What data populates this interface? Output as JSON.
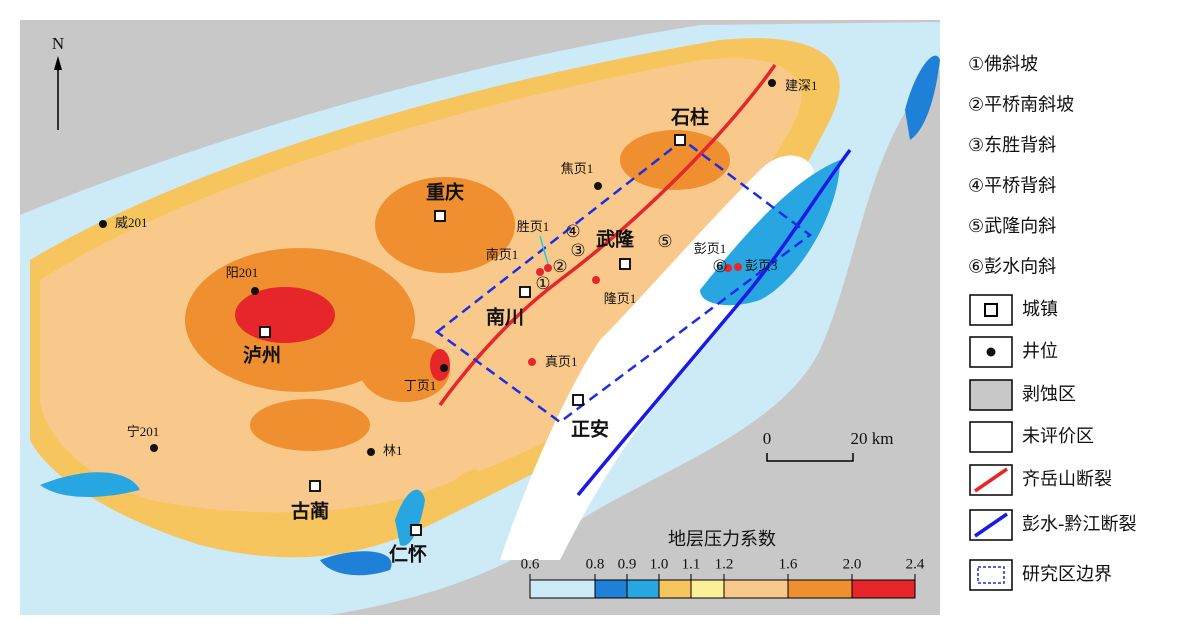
{
  "north": "N",
  "scale_bar": {
    "start": "0",
    "end": "20 km"
  },
  "colorbar": {
    "title": "地层压力系数",
    "ticks": [
      "0.6",
      "0.8",
      "0.9",
      "1.0",
      "1.1",
      "1.2",
      "1.6",
      "2.0",
      "2.4"
    ],
    "colors": [
      "#cdeaf7",
      "#1e80d6",
      "#28a6e1",
      "#f6c55e",
      "#fbef98",
      "#f8c98a",
      "#ef8f30",
      "#e6262b"
    ]
  },
  "cities": [
    "重庆",
    "泸州",
    "南川",
    "武隆",
    "石柱",
    "正安",
    "古蔺",
    "仁怀"
  ],
  "wells": [
    "建深1",
    "焦页1",
    "威201",
    "胜页1",
    "南页1",
    "阳201",
    "彭页1",
    "彭页3",
    "隆页1",
    "真页1",
    "丁页1",
    "宁201",
    "林1"
  ],
  "structures": [
    "①",
    "②",
    "③",
    "④",
    "⑤",
    "⑥"
  ],
  "legend": {
    "structures": [
      "①佛斜坡",
      "②平桥南斜坡",
      "③东胜背斜",
      "④平桥背斜",
      "⑤武隆向斜",
      "⑥彭水向斜"
    ],
    "symbols": [
      "城镇",
      "井位",
      "剥蚀区",
      "未评价区",
      "齐岳山断裂",
      "彭水-黔江断裂",
      "研究区边界"
    ]
  }
}
